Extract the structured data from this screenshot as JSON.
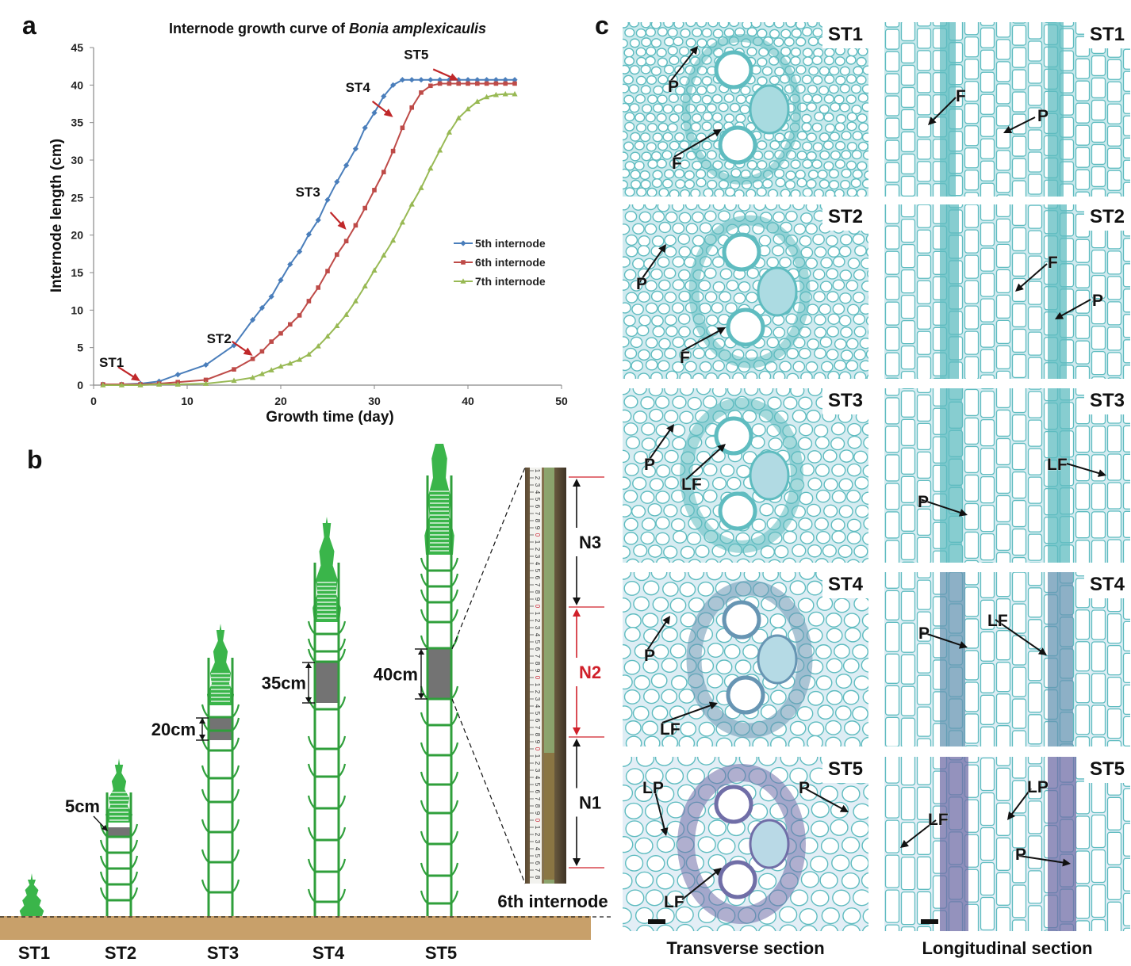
{
  "panel_labels": {
    "a": "a",
    "b": "b",
    "c": "c"
  },
  "chart_data": {
    "type": "line",
    "title": "Internode growth curve of Bonia amplexicaulis",
    "title_parts": {
      "plain": "Internode growth curve of ",
      "italic": "Bonia amplexicaulis"
    },
    "xlabel": "Growth time (day)",
    "ylabel": "Internode length (cm)",
    "xlim": [
      0,
      50
    ],
    "ylim": [
      0,
      45
    ],
    "xticks": [
      0,
      10,
      20,
      30,
      40,
      50
    ],
    "yticks": [
      0,
      5,
      10,
      15,
      20,
      25,
      30,
      35,
      40,
      45
    ],
    "grid": false,
    "legend_position": "right",
    "x": [
      1,
      3,
      5,
      7,
      9,
      12,
      15,
      17,
      18,
      19,
      20,
      21,
      22,
      23,
      24,
      25,
      26,
      27,
      28,
      29,
      30,
      31,
      32,
      33,
      34,
      35,
      36,
      37,
      38,
      39,
      40,
      41,
      42,
      43,
      44,
      45
    ],
    "series": [
      {
        "name": "5th internode",
        "color": "#4a7ebb",
        "marker": "diamond",
        "values": [
          0.1,
          0.1,
          0.2,
          0.5,
          1.4,
          2.7,
          5.3,
          8.7,
          10.3,
          11.8,
          14.0,
          16.1,
          17.8,
          20.1,
          22.0,
          24.7,
          27.1,
          29.3,
          31.5,
          34.3,
          36.3,
          38.5,
          40.0,
          40.7,
          40.7,
          40.7,
          40.7,
          40.7,
          40.7,
          40.7,
          40.7,
          40.7,
          40.7,
          40.7,
          40.7,
          40.7
        ]
      },
      {
        "name": "6th internode",
        "color": "#be4b48",
        "marker": "square",
        "values": [
          0.1,
          0.1,
          0.1,
          0.2,
          0.4,
          0.7,
          2.1,
          3.5,
          4.5,
          5.8,
          6.9,
          8.1,
          9.3,
          11.2,
          13.0,
          15.2,
          17.4,
          19.2,
          21.3,
          23.6,
          26.0,
          28.4,
          31.2,
          34.3,
          37.0,
          39.0,
          39.9,
          40.2,
          40.2,
          40.2,
          40.2,
          40.2,
          40.2,
          40.2,
          40.2,
          40.2
        ]
      },
      {
        "name": "7th internode",
        "color": "#98b954",
        "marker": "triangle",
        "values": [
          0.0,
          0.0,
          0.0,
          0.1,
          0.1,
          0.2,
          0.6,
          1.0,
          1.5,
          2.0,
          2.5,
          2.9,
          3.4,
          4.1,
          5.2,
          6.5,
          7.9,
          9.4,
          11.2,
          13.2,
          15.3,
          17.3,
          19.3,
          21.7,
          24.1,
          26.3,
          28.9,
          31.3,
          33.7,
          35.6,
          36.8,
          37.8,
          38.4,
          38.7,
          38.8,
          38.8
        ]
      }
    ],
    "annotations": [
      {
        "text": "ST1",
        "x": 5,
        "y": 0.1
      },
      {
        "text": "ST2",
        "x": 17,
        "y": 3.5
      },
      {
        "text": "ST3",
        "x": 27,
        "y": 20.3
      },
      {
        "text": "ST4",
        "x": 32,
        "y": 35.3
      },
      {
        "text": "ST5",
        "x": 39,
        "y": 40.2
      }
    ],
    "arrow_color": "#c0282a"
  },
  "diagram_b": {
    "ground_color": "#c8a06a",
    "plant_color": "#2f9f3b",
    "tip_color": "#3ab54a",
    "segment_color": "#737373",
    "stage_labels": [
      "ST1",
      "ST2",
      "ST3",
      "ST4",
      "ST5"
    ],
    "lengths": [
      "5cm",
      "20cm",
      "35cm",
      "40cm"
    ],
    "photo_segments": [
      "N3",
      "N2",
      "N1"
    ],
    "photo_caption": "6th internode",
    "highlight_color": "#d0202a",
    "ruler_digits": "1234567890"
  },
  "panel_c": {
    "rows": [
      "ST1",
      "ST2",
      "ST3",
      "ST4",
      "ST5"
    ],
    "columns": [
      "Transverse section",
      "Longitudinal section"
    ],
    "labels": {
      "ST1_t": [
        "P",
        "F"
      ],
      "ST1_l": [
        "F",
        "P"
      ],
      "ST2_t": [
        "P",
        "F"
      ],
      "ST2_l": [
        "F",
        "P"
      ],
      "ST3_t": [
        "P",
        "LF"
      ],
      "ST3_l": [
        "LF",
        "P"
      ],
      "ST4_t": [
        "P",
        "LF"
      ],
      "ST4_l": [
        "P",
        "LF"
      ],
      "ST5_t": [
        "LP",
        "P",
        "LF"
      ],
      "ST5_l": [
        "LF",
        "LP",
        "P"
      ]
    },
    "stain_early": "#5fbcc0",
    "stain_late": "#7b3a96"
  }
}
